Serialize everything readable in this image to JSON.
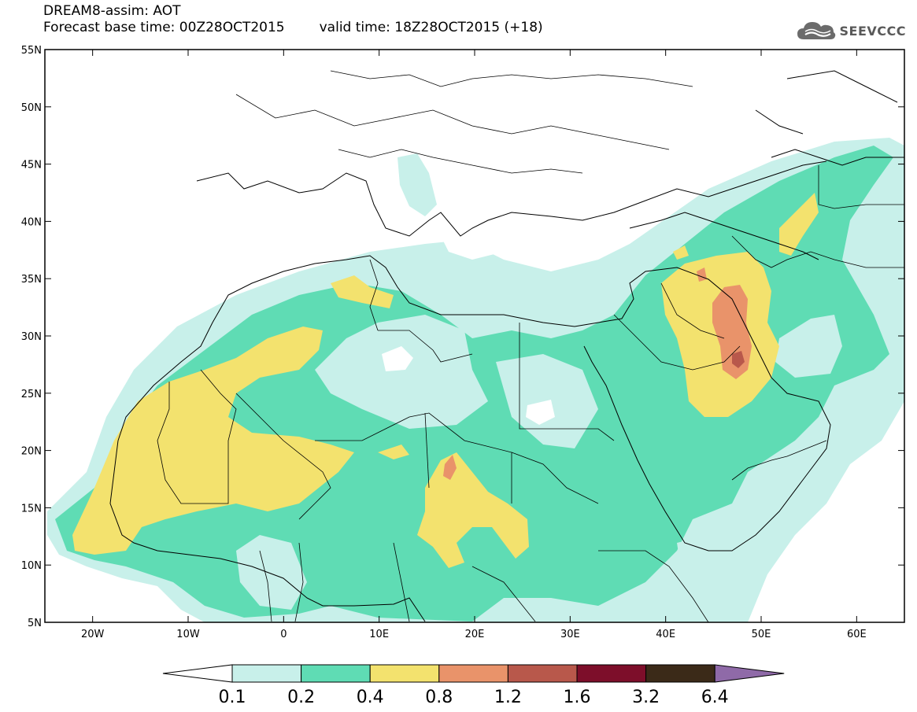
{
  "header": {
    "title": "DREAM8-assim: AOT",
    "base_time": "Forecast base time: 00Z28OCT2015",
    "valid_time": "valid time: 18Z28OCT2015 (+18)"
  },
  "logo": {
    "text": "SEEVCCC",
    "icon": "cloud-logo-icon",
    "color": "#595959"
  },
  "map": {
    "projection": "cylindrical-equidistant",
    "lon_range": [
      -25,
      65
    ],
    "lat_range": [
      5,
      55
    ],
    "lat_ticks": [
      {
        "value": 55,
        "label": "55N"
      },
      {
        "value": 50,
        "label": "50N"
      },
      {
        "value": 45,
        "label": "45N"
      },
      {
        "value": 40,
        "label": "40N"
      },
      {
        "value": 35,
        "label": "35N"
      },
      {
        "value": 30,
        "label": "30N"
      },
      {
        "value": 25,
        "label": "25N"
      },
      {
        "value": 20,
        "label": "20N"
      },
      {
        "value": 15,
        "label": "15N"
      },
      {
        "value": 10,
        "label": "10N"
      },
      {
        "value": 5,
        "label": "5N"
      }
    ],
    "lon_ticks": [
      {
        "value": -20,
        "label": "20W"
      },
      {
        "value": -10,
        "label": "10W"
      },
      {
        "value": 0,
        "label": "0"
      },
      {
        "value": 10,
        "label": "10E"
      },
      {
        "value": 20,
        "label": "20E"
      },
      {
        "value": 30,
        "label": "30E"
      },
      {
        "value": 40,
        "label": "40E"
      },
      {
        "value": 50,
        "label": "50E"
      },
      {
        "value": 60,
        "label": "60E"
      }
    ]
  },
  "colorbar": {
    "labels": [
      "0.1",
      "0.2",
      "0.4",
      "0.8",
      "1.2",
      "1.6",
      "3.2",
      "6.4"
    ],
    "colors": [
      "#c8f0ea",
      "#5fdcb4",
      "#f3e26e",
      "#e9936a",
      "#b8584b",
      "#7d0e2a",
      "#3b2a18",
      "#8f6aa8"
    ]
  }
}
